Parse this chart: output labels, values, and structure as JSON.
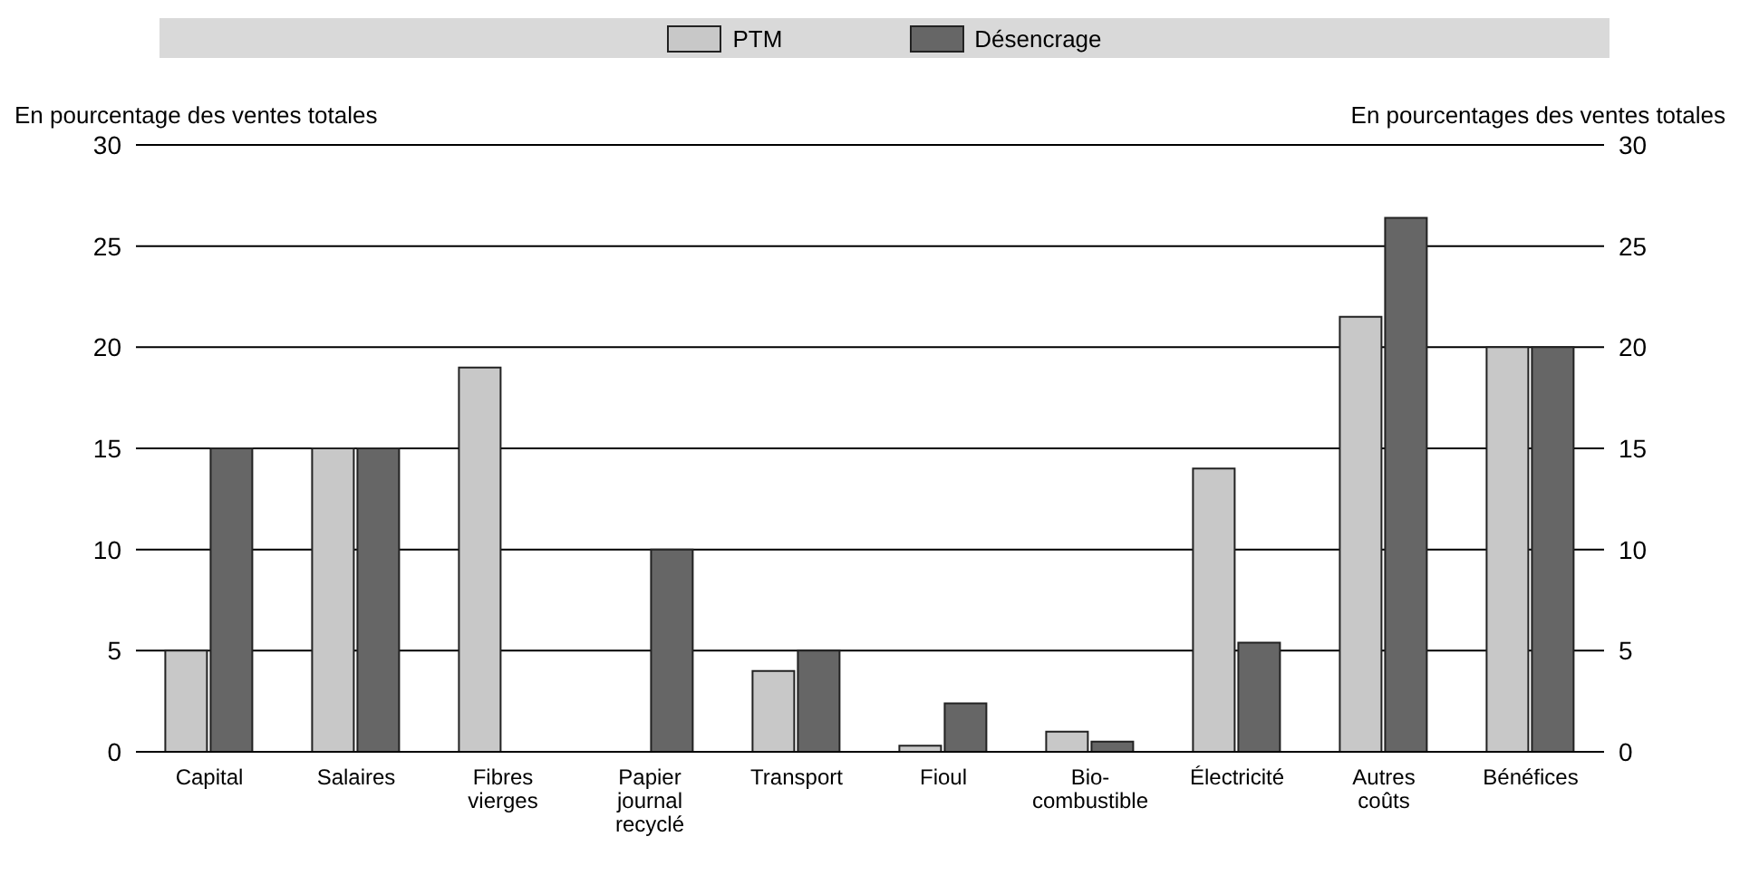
{
  "chart_data": {
    "type": "bar",
    "ylabel": "En pourcentage des ventes totales",
    "y2label": "En pourcentages des ventes totales",
    "categories": [
      "Capital",
      "Salaires",
      "Fibres vierges",
      "Papier journal recyclé",
      "Transport",
      "Fioul",
      "Bio-combustible",
      "Électricité",
      "Autres coûts",
      "Bénéfices"
    ],
    "series": [
      {
        "name": "PTM",
        "color": "#c8c8c8",
        "values": [
          5,
          15,
          19,
          null,
          4,
          0.3,
          1,
          14,
          21.5,
          20
        ]
      },
      {
        "name": "Désencrage",
        "color": "#666666",
        "values": [
          15,
          15,
          null,
          10,
          5,
          2.4,
          0.5,
          5.4,
          26.4,
          20
        ]
      }
    ],
    "ylim": [
      0,
      30
    ],
    "yticks": [
      0,
      5,
      10,
      15,
      20,
      25,
      30
    ],
    "y2lim": [
      0,
      30
    ],
    "y2ticks": [
      0,
      5,
      10,
      15,
      20,
      25,
      30
    ],
    "grid": "y",
    "legend": "top"
  }
}
